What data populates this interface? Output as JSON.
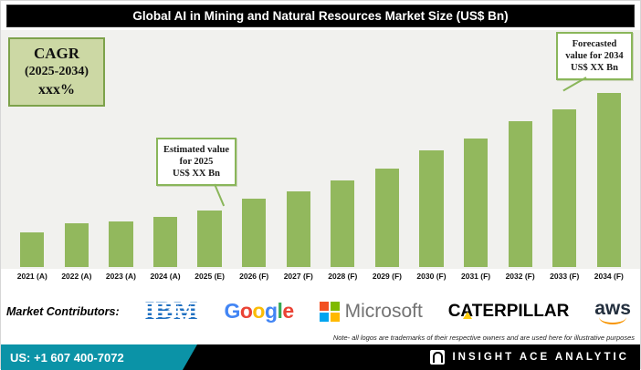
{
  "theme": {
    "bar_green": "#92b85d",
    "callout_green": "#8ab65a",
    "cagr_bg": "#ccd8a4",
    "teal": "#0b93a7",
    "ibm_blue": "#1f70c1",
    "ms_gray": "#737373",
    "cat_yellow": "#ffcd11",
    "aws_orange": "#f79400",
    "aws_navy": "#232f3e"
  },
  "header": {
    "title": "Global AI in Mining and Natural Resources Market  Size (US$ Bn)"
  },
  "cagr_box": {
    "line1": "CAGR",
    "line2": "(2025-2034)",
    "line3": "xxx%"
  },
  "callout_estimated": {
    "label": "Estimated value for 2025",
    "value": "US$ XX Bn"
  },
  "callout_forecasted": {
    "label": "Forecasted value for 2034",
    "value": "US$ XX Bn"
  },
  "chart_data": {
    "type": "bar",
    "title": "Global AI in Mining and Natural Resources Market Size (US$ Bn)",
    "categories": [
      "2021 (A)",
      "2022 (A)",
      "2023 (A)",
      "2024 (A)",
      "2025 (E)",
      "2026 (F)",
      "2027 (F)",
      "2028 (F)",
      "2029 (F)",
      "2030 (F)",
      "2031 (F)",
      "2032 (F)",
      "2033 (F)",
      "2034 (F)"
    ],
    "values": [
      38,
      48,
      50,
      55,
      62,
      75,
      83,
      95,
      108,
      128,
      141,
      160,
      173,
      191
    ],
    "bar_color": "#92b85d",
    "xlabel": "",
    "ylabel": "",
    "legend": "none",
    "grid": false
  },
  "contributors": {
    "label": "Market Contributors:",
    "ibm": "IBM",
    "google": {
      "letters": [
        "G",
        "o",
        "o",
        "g",
        "l",
        "e"
      ],
      "colors": [
        "#4285F4",
        "#EA4335",
        "#FBBC05",
        "#4285F4",
        "#34A853",
        "#EA4335"
      ]
    },
    "microsoft": "Microsoft",
    "microsoft_colors": [
      "#f25022",
      "#7fba00",
      "#00a4ef",
      "#ffb900"
    ],
    "caterpillar": "CATERPILLAR",
    "aws": "aws",
    "note": "Note- all logos are trademarks of their respective owners and are used here for illustrative purposes"
  },
  "footer": {
    "phone": "US: +1 607 400-7072",
    "brand": "INSIGHT ACE ANALYTIC"
  }
}
